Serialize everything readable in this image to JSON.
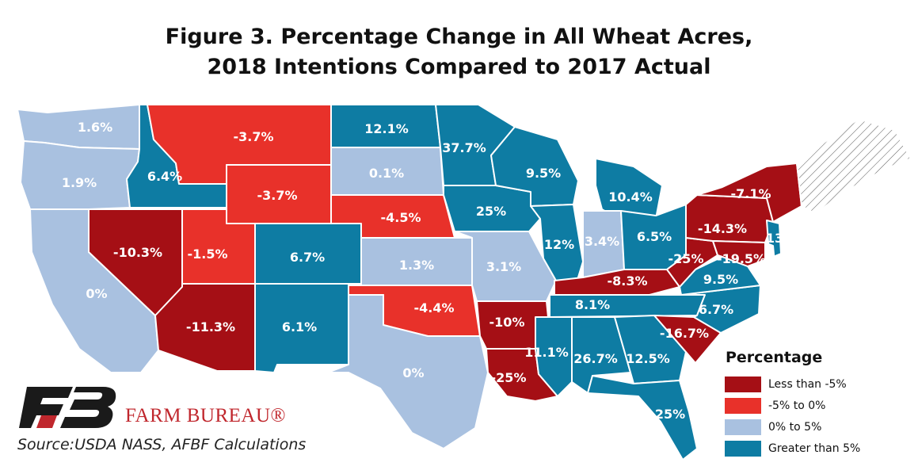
{
  "title_line1": "Figure 3. Percentage Change in All Wheat Acres,",
  "title_line2": "2018 Intentions Compared to 2017 Actual",
  "legend": {
    "title": "Percentage",
    "items": [
      {
        "label": "Less than -5%",
        "color": "#a50f15"
      },
      {
        "label": "-5% to 0%",
        "color": "#e8312a"
      },
      {
        "label": "0% to 5%",
        "color": "#a9c1e0"
      },
      {
        "label": "Greater than 5%",
        "color": "#0e7ca3"
      }
    ]
  },
  "brand": "FARM BUREAU®",
  "source": "Source:USDA NASS, AFBF Calculations",
  "no_data_color": "#ffffff",
  "states": [
    {
      "name": "WA",
      "value": "1.6%"
    },
    {
      "name": "OR",
      "value": "1.9%"
    },
    {
      "name": "CA",
      "value": "0%"
    },
    {
      "name": "ID",
      "value": "6.4%"
    },
    {
      "name": "NV",
      "value": "-10.3%"
    },
    {
      "name": "MT",
      "value": "-3.7%"
    },
    {
      "name": "WY",
      "value": "-3.7%"
    },
    {
      "name": "UT",
      "value": "-1.5%"
    },
    {
      "name": "AZ",
      "value": "-11.3%"
    },
    {
      "name": "CO",
      "value": "6.7%"
    },
    {
      "name": "NM",
      "value": "6.1%"
    },
    {
      "name": "ND",
      "value": "12.1%"
    },
    {
      "name": "SD",
      "value": "0.1%"
    },
    {
      "name": "NE",
      "value": "-4.5%"
    },
    {
      "name": "KS",
      "value": "1.3%"
    },
    {
      "name": "OK",
      "value": "-4.4%"
    },
    {
      "name": "TX",
      "value": "0%"
    },
    {
      "name": "MN",
      "value": "37.7%"
    },
    {
      "name": "IA",
      "value": "25%"
    },
    {
      "name": "MO",
      "value": "3.1%"
    },
    {
      "name": "AR",
      "value": "-10%"
    },
    {
      "name": "LA",
      "value": "-25%"
    },
    {
      "name": "WI",
      "value": "9.5%"
    },
    {
      "name": "IL",
      "value": "12%"
    },
    {
      "name": "MI",
      "value": "10.4%"
    },
    {
      "name": "IN",
      "value": "3.4%"
    },
    {
      "name": "OH",
      "value": "6.5%"
    },
    {
      "name": "KY",
      "value": "-8.3%"
    },
    {
      "name": "TN",
      "value": "8.1%"
    },
    {
      "name": "MS",
      "value": "11.1%"
    },
    {
      "name": "AL",
      "value": "26.7%"
    },
    {
      "name": "GA",
      "value": "12.5%"
    },
    {
      "name": "FL",
      "value": "25%"
    },
    {
      "name": "SC",
      "value": "-16.7%"
    },
    {
      "name": "NC",
      "value": "6.7%"
    },
    {
      "name": "VA",
      "value": "9.5%"
    },
    {
      "name": "WV",
      "value": "-25%"
    },
    {
      "name": "PA",
      "value": "-14.3%"
    },
    {
      "name": "NY",
      "value": "-7.1%"
    },
    {
      "name": "NJ",
      "value": "13%"
    },
    {
      "name": "MD",
      "value": "-19.5%"
    },
    {
      "name": "DE",
      "value": ""
    },
    {
      "name": "NE_states",
      "value": ""
    }
  ]
}
